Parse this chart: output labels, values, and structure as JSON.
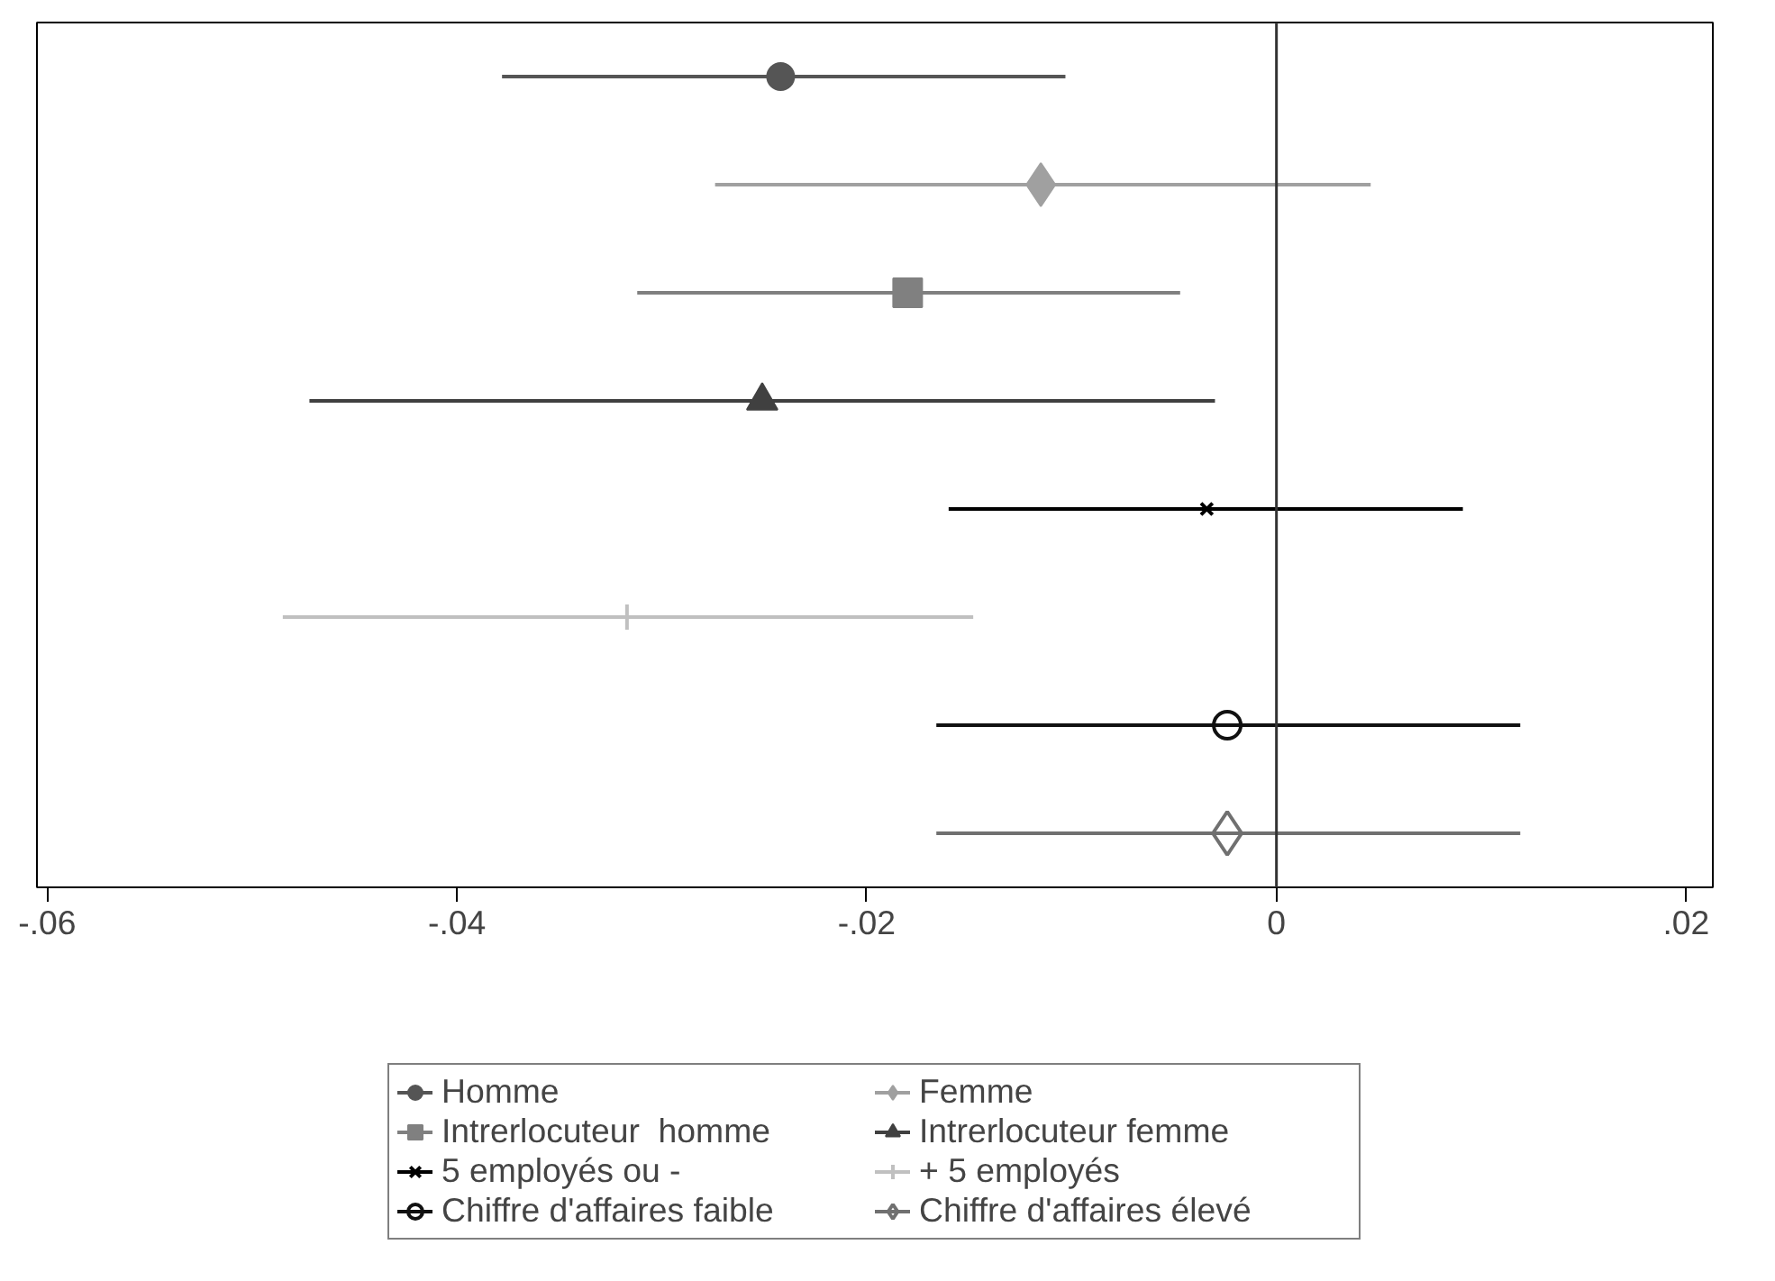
{
  "chart_data": {
    "type": "scatter",
    "orientation": "horizontal",
    "categories": [
      null,
      null,
      null,
      null,
      null,
      null,
      null,
      null
    ],
    "series": [
      {
        "name": "Homme",
        "color": "#555555",
        "marker": "circle",
        "values": [
          -0.0242,
          null,
          null,
          null,
          null,
          null,
          null,
          null
        ],
        "errors": [
          [
            -0.0378,
            -0.0103
          ],
          null,
          null,
          null,
          null,
          null,
          null,
          null
        ]
      },
      {
        "name": "Femme",
        "color": "#a0a0a0",
        "marker": "diamond",
        "values": [
          null,
          -0.0115,
          null,
          null,
          null,
          null,
          null,
          null
        ],
        "errors": [
          null,
          [
            -0.0274,
            0.0046
          ],
          null,
          null,
          null,
          null,
          null,
          null
        ]
      },
      {
        "name": "Intrerlocuteur  homme",
        "color": "#808080",
        "marker": "square",
        "values": [
          null,
          null,
          -0.018,
          null,
          null,
          null,
          null,
          null
        ],
        "errors": [
          null,
          null,
          [
            -0.0312,
            -0.0047
          ],
          null,
          null,
          null,
          null,
          null
        ]
      },
      {
        "name": "Intrerlocuteur femme",
        "color": "#404040",
        "marker": "triangle",
        "values": [
          null,
          null,
          null,
          -0.0251,
          null,
          null,
          null,
          null
        ],
        "errors": [
          null,
          null,
          null,
          [
            -0.0472,
            -0.003
          ],
          null,
          null,
          null,
          null
        ]
      },
      {
        "name": "5 employés ou -",
        "color": "#000000",
        "marker": "x",
        "values": [
          null,
          null,
          null,
          null,
          -0.0034,
          null,
          null,
          null
        ],
        "errors": [
          null,
          null,
          null,
          null,
          [
            -0.016,
            0.0091
          ],
          null,
          null,
          null
        ]
      },
      {
        "name": "+ 5 employés",
        "color": "#c0c0c0",
        "marker": "cross",
        "values": [
          null,
          null,
          null,
          null,
          null,
          -0.0317,
          null,
          null
        ],
        "errors": [
          null,
          null,
          null,
          null,
          null,
          [
            -0.0485,
            -0.0148
          ],
          null,
          null
        ]
      },
      {
        "name": "Chiffre d'affaires faible",
        "color": "#111111",
        "marker": "circle_open",
        "values": [
          null,
          null,
          null,
          null,
          null,
          null,
          -0.0024,
          null
        ],
        "errors": [
          null,
          null,
          null,
          null,
          null,
          null,
          [
            -0.0166,
            0.0119
          ],
          null
        ]
      },
      {
        "name": "Chiffre d'affaires élevé",
        "color": "#707070",
        "marker": "diamond_open",
        "values": [
          null,
          null,
          null,
          null,
          null,
          null,
          null,
          -0.0024
        ],
        "errors": [
          null,
          null,
          null,
          null,
          null,
          null,
          null,
          [
            -0.0166,
            0.0119
          ]
        ]
      }
    ],
    "xlim": [
      -0.0605,
      0.0213
    ],
    "xticks": [
      {
        "value": -0.06,
        "label": "-.06"
      },
      {
        "value": -0.04,
        "label": "-.04"
      },
      {
        "value": -0.02,
        "label": "-.02"
      },
      0,
      {
        "value": 0.02,
        "label": ".02"
      }
    ],
    "ref_lines": [
      {
        "axis": "x",
        "value": 0,
        "color": "#333333"
      }
    ],
    "grid": false,
    "legend": "bottom",
    "tick_labels": "x"
  }
}
